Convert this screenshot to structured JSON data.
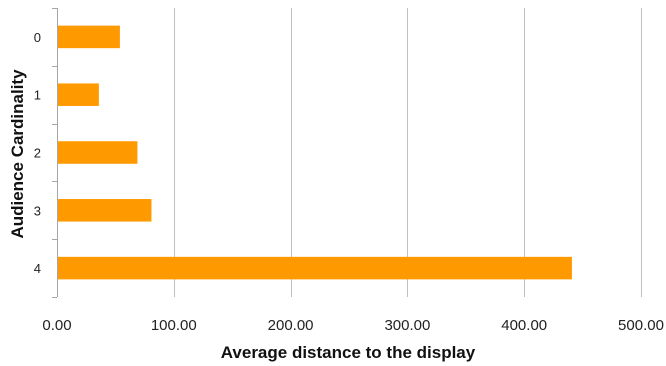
{
  "chart_data": {
    "type": "bar",
    "orientation": "horizontal",
    "categories": [
      "0",
      "1",
      "2",
      "3",
      "4"
    ],
    "values": [
      53,
      35,
      68,
      80,
      440
    ],
    "xlabel": "Average distance to the display",
    "ylabel": "Audience Cardinality",
    "xlim": [
      0,
      500
    ],
    "xticks": [
      "0.00",
      "100.00",
      "200.00",
      "300.00",
      "400.00",
      "500.00"
    ],
    "grid": "vertical",
    "legend": "none",
    "bar_color": "#ff9900",
    "grid_color": "#c0c0c0",
    "axis_color": "#a6a6a6"
  }
}
